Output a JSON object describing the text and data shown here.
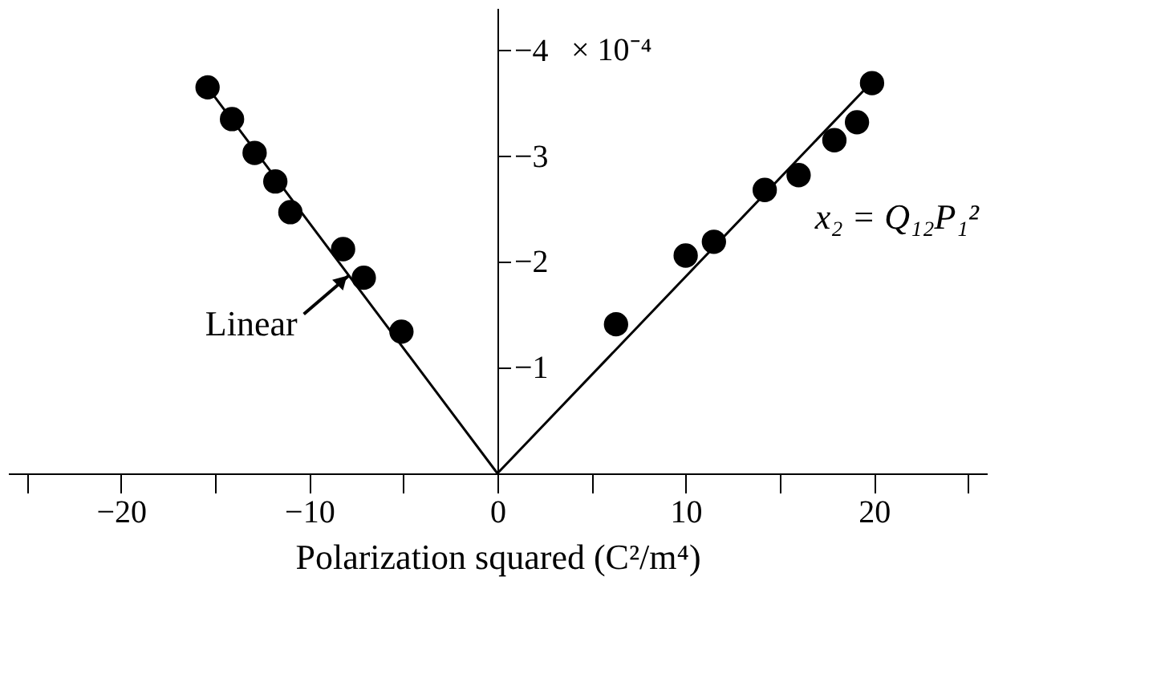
{
  "chart_data": {
    "type": "scatter",
    "xlabel": "Polarization squared (C²/m⁴)",
    "ylabel": "× 10⁻⁴",
    "series": [
      {
        "color": "#000000",
        "marker": "circle",
        "x": [
          -15.4,
          -14.1,
          -12.9,
          -11.8,
          -11.0,
          -8.2,
          -7.1,
          -5.1,
          6.3,
          10.0,
          11.5,
          14.2,
          16.0,
          17.9,
          19.1,
          19.9
        ],
        "values": [
          -3.65,
          -3.35,
          -3.03,
          -2.76,
          -2.47,
          -2.12,
          -1.85,
          -1.34,
          -1.41,
          -2.06,
          -2.19,
          -2.68,
          -2.82,
          -3.15,
          -3.32,
          -3.69
        ]
      },
      {
        "type": "line",
        "color": "#000000",
        "line_style": "solid",
        "x": [
          -15.4,
          0,
          20.1
        ],
        "values": [
          -3.65,
          0,
          -3.74
        ]
      }
    ],
    "xlim": [
      -26,
      26
    ],
    "xticks": [
      {
        "value": -25,
        "label": null
      },
      -20,
      {
        "value": -15,
        "label": null
      },
      -10,
      {
        "value": -5,
        "label": null
      },
      0,
      {
        "value": 5,
        "label": null
      },
      10,
      {
        "value": 15,
        "label": null
      },
      20,
      {
        "value": 25,
        "label": null
      }
    ],
    "ylim": [
      0,
      -4.4
    ],
    "yticks": [
      -1,
      -2,
      -3,
      -4
    ],
    "annotations": [
      {
        "text": "Linear",
        "x": -7.9,
        "y": -1.87
      },
      "x₂ = Q₁₂P₁²"
    ],
    "grid": false
  }
}
